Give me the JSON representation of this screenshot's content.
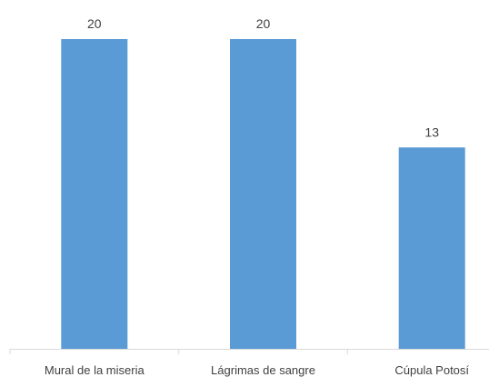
{
  "chart_data": {
    "type": "bar",
    "title": "",
    "xlabel": "",
    "ylabel": "",
    "categories": [
      "Mural de la miseria",
      "Lágrimas de sangre",
      "Cúpula Potosí"
    ],
    "values": [
      20,
      20,
      13
    ],
    "ylim": [
      0,
      20
    ],
    "grid": false,
    "legend": "none",
    "data_labels": true,
    "bar_color": "#5b9bd5",
    "axis_color": "#d9d9d9",
    "label_color": "#404040"
  }
}
